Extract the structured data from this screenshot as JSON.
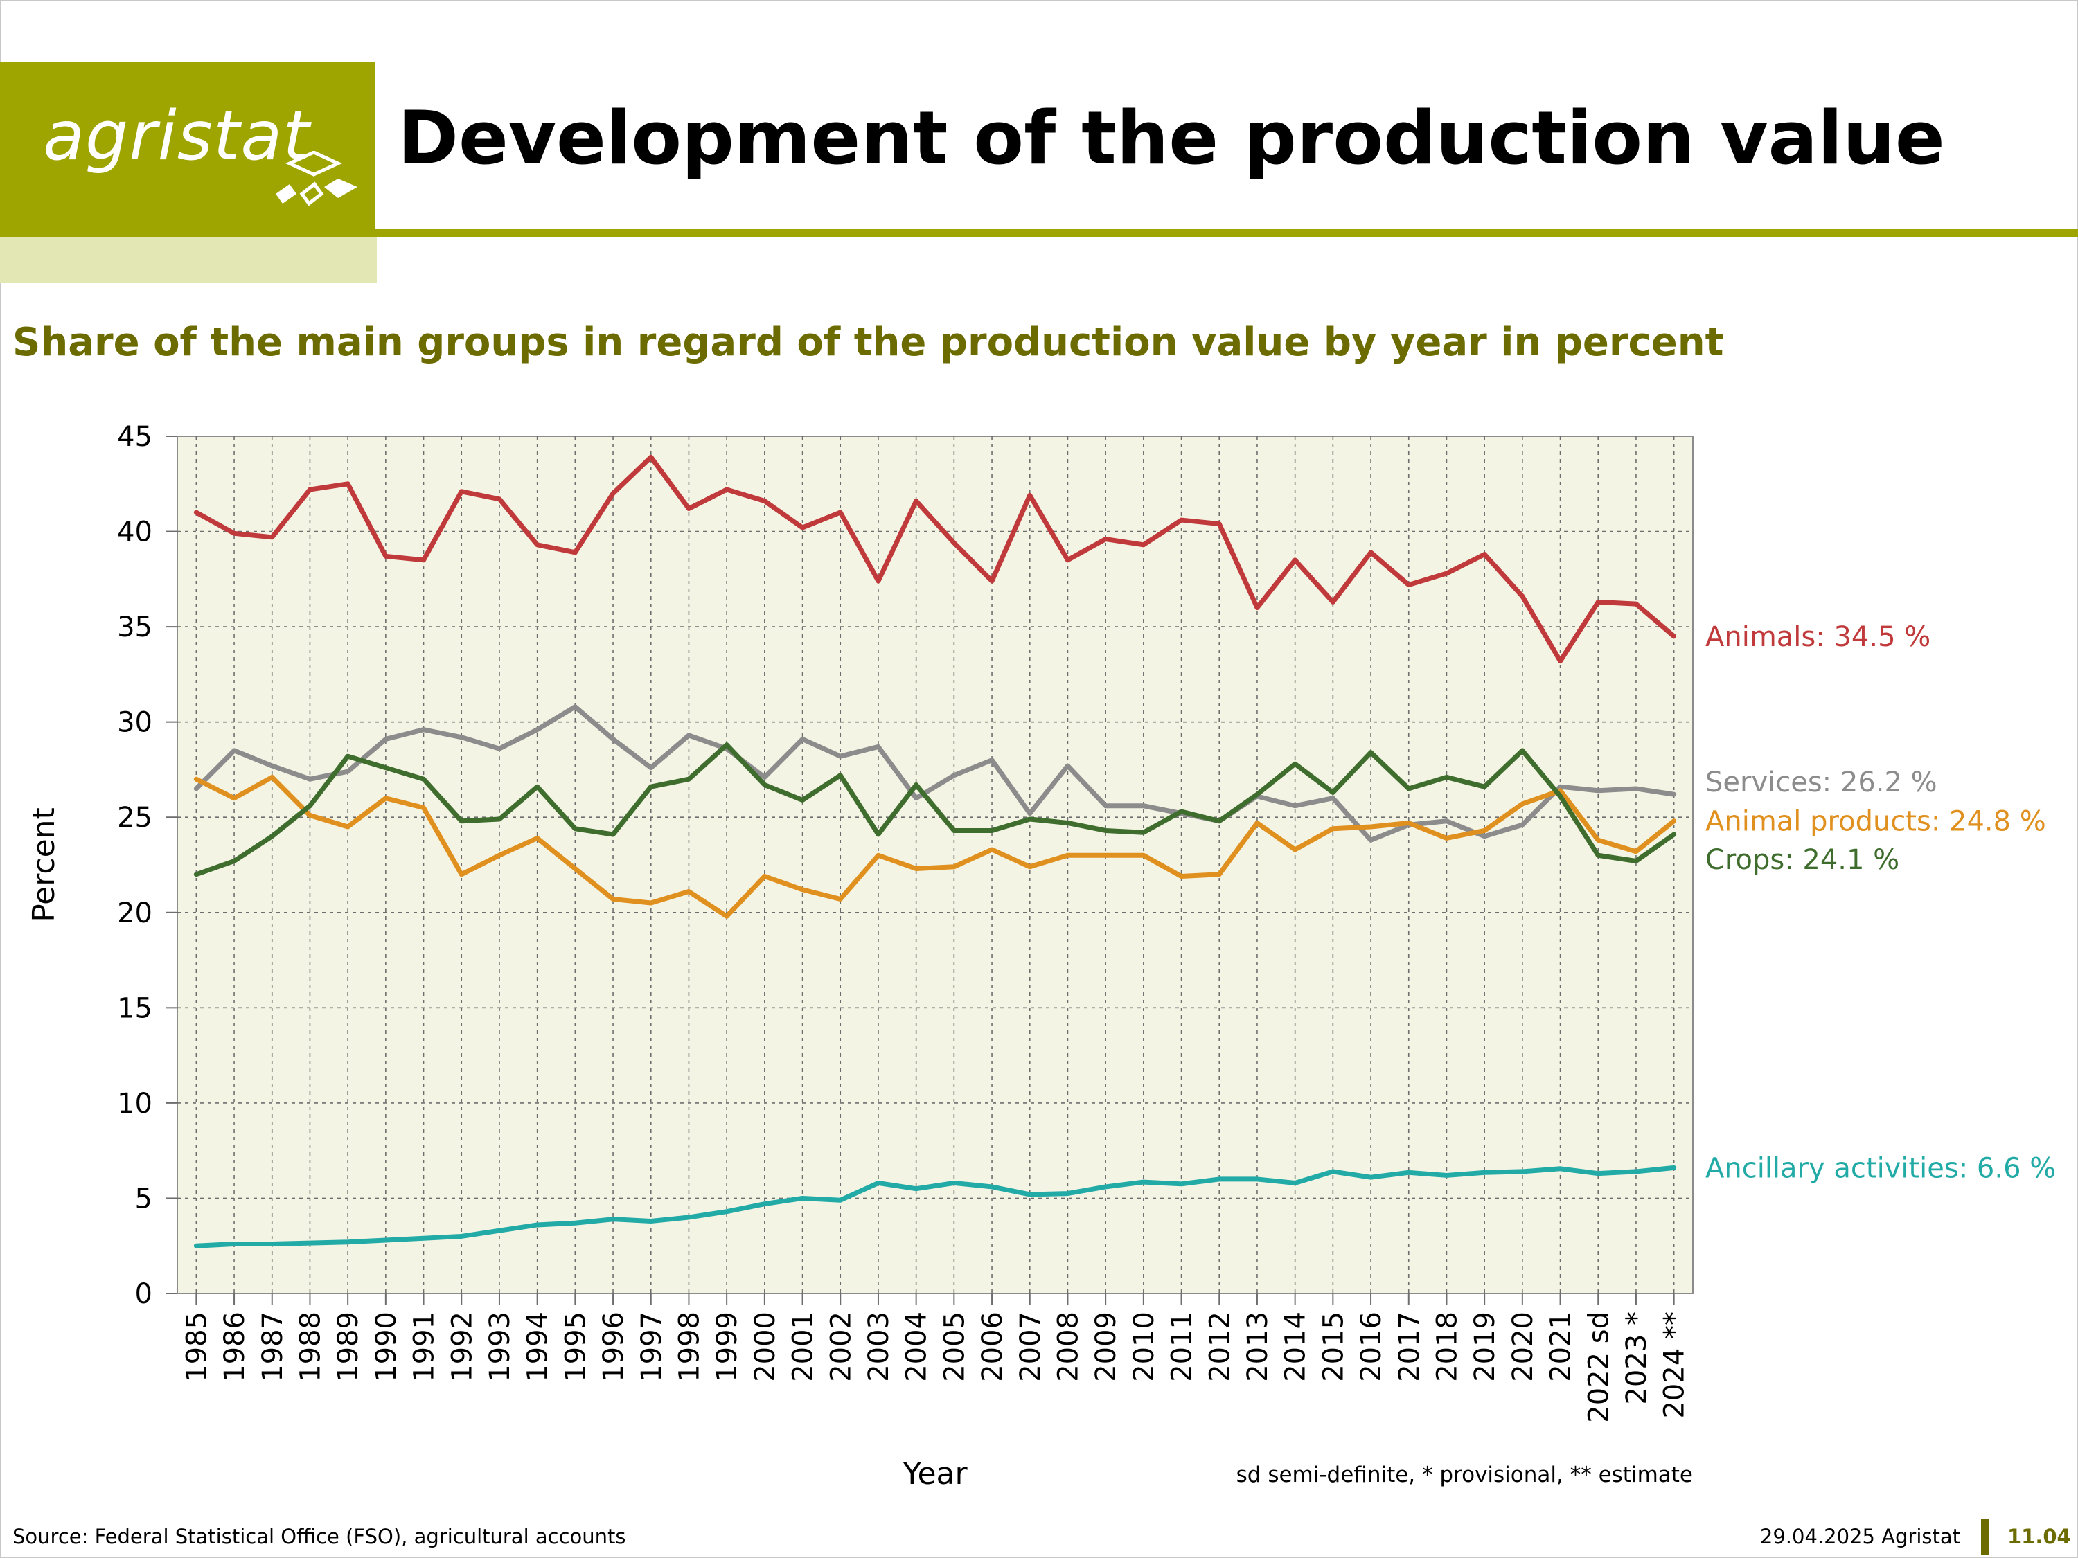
{
  "header": {
    "logo_text": "agristat",
    "title": "Development of the production value"
  },
  "subtitle": "Share of the main groups in regard of the production value by year in percent",
  "colors": {
    "brand": "#9ea500",
    "brand_pale": "#e2e7b4",
    "subtitle": "#6b6b00",
    "plot_bg": "#f4f4e4"
  },
  "chart_data": {
    "type": "line",
    "xlabel": "Year",
    "ylabel": "Percent",
    "ylim": [
      0,
      45
    ],
    "yticks": [
      0,
      5,
      10,
      15,
      20,
      25,
      30,
      35,
      40,
      45
    ],
    "grid": true,
    "legend": "end-of-line labels, right",
    "x": [
      "1985",
      "1986",
      "1987",
      "1988",
      "1989",
      "1990",
      "1991",
      "1992",
      "1993",
      "1994",
      "1995",
      "1996",
      "1997",
      "1998",
      "1999",
      "2000",
      "2001",
      "2002",
      "2003",
      "2004",
      "2005",
      "2006",
      "2007",
      "2008",
      "2009",
      "2010",
      "2011",
      "2012",
      "2013",
      "2014",
      "2015",
      "2016",
      "2017",
      "2018",
      "2019",
      "2020",
      "2021",
      "2022 sd",
      "2023 *",
      "2024 **"
    ],
    "note": "sd semi-definite, * provisional, ** estimate",
    "series": [
      {
        "name": "Animals",
        "end_label": "Animals: 34.5 %",
        "color": "#c0393b",
        "values": [
          41.0,
          39.9,
          39.7,
          42.2,
          42.5,
          38.7,
          38.5,
          42.1,
          41.7,
          39.3,
          38.9,
          42.0,
          43.9,
          41.2,
          42.2,
          41.6,
          40.2,
          41.0,
          37.4,
          41.6,
          39.4,
          37.4,
          41.9,
          38.5,
          39.6,
          39.3,
          40.6,
          40.4,
          36.0,
          38.5,
          36.3,
          38.9,
          37.2,
          37.8,
          38.8,
          36.6,
          33.2,
          36.3,
          36.2,
          34.5
        ]
      },
      {
        "name": "Services",
        "end_label": "Services: 26.2 %",
        "color": "#8c8c8c",
        "values": [
          26.5,
          28.5,
          27.7,
          27.0,
          27.4,
          29.1,
          29.6,
          29.2,
          28.6,
          29.6,
          30.8,
          29.1,
          27.6,
          29.3,
          28.6,
          27.1,
          29.1,
          28.2,
          28.7,
          26.0,
          27.2,
          28.0,
          25.2,
          27.7,
          25.6,
          25.6,
          25.2,
          24.8,
          26.1,
          25.6,
          26.0,
          23.8,
          24.6,
          24.8,
          24.0,
          24.6,
          26.6,
          26.4,
          26.5,
          26.2
        ]
      },
      {
        "name": "Animal products",
        "end_label": "Animal products: 24.8 %",
        "color": "#e0901e",
        "values": [
          27.0,
          26.0,
          27.1,
          25.1,
          24.5,
          26.0,
          25.5,
          22.0,
          23.0,
          23.9,
          22.3,
          20.7,
          20.5,
          21.1,
          19.8,
          21.9,
          21.2,
          20.7,
          23.0,
          22.3,
          22.4,
          23.3,
          22.4,
          23.0,
          23.0,
          23.0,
          21.9,
          22.0,
          24.7,
          23.3,
          24.4,
          24.5,
          24.7,
          23.9,
          24.3,
          25.7,
          26.4,
          23.8,
          23.2,
          24.8
        ]
      },
      {
        "name": "Crops",
        "end_label": "Crops: 24.1 %",
        "color": "#3e6d2e",
        "values": [
          22.0,
          22.7,
          24.0,
          25.6,
          28.2,
          27.6,
          27.0,
          24.8,
          24.9,
          26.6,
          24.4,
          24.1,
          26.6,
          27.0,
          28.8,
          26.7,
          25.9,
          27.2,
          24.1,
          26.7,
          24.3,
          24.3,
          24.9,
          24.7,
          24.3,
          24.2,
          25.3,
          24.8,
          26.2,
          27.8,
          26.3,
          28.4,
          26.5,
          27.1,
          26.6,
          28.5,
          26.1,
          23.0,
          22.7,
          24.1
        ]
      },
      {
        "name": "Ancillary activities",
        "end_label": "Ancillary activities: 6.6 %",
        "color": "#22aaa6",
        "values": [
          2.5,
          2.6,
          2.6,
          2.65,
          2.7,
          2.8,
          2.9,
          3.0,
          3.3,
          3.6,
          3.7,
          3.9,
          3.8,
          4.0,
          4.3,
          4.7,
          5.0,
          4.9,
          5.8,
          5.5,
          5.8,
          5.6,
          5.2,
          5.25,
          5.6,
          5.85,
          5.75,
          6.0,
          6.0,
          5.8,
          6.4,
          6.1,
          6.35,
          6.2,
          6.35,
          6.4,
          6.55,
          6.3,
          6.4,
          6.6
        ]
      }
    ]
  },
  "footer": {
    "source": "Source: Federal Statistical Office (FSO), agricultural accounts",
    "date": "29.04.2025 Agristat",
    "page": "11.04"
  }
}
